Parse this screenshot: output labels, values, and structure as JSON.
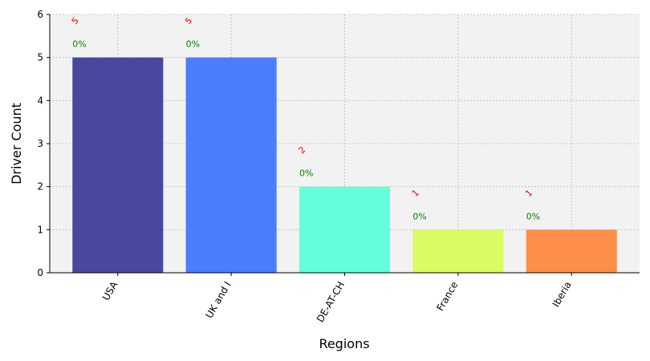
{
  "chart_data": {
    "type": "bar",
    "x_label": "Regions",
    "y_label": "Driver Count",
    "categories": [
      "USA",
      "UK and I",
      "DE-AT-CH",
      "France",
      "Iberia"
    ],
    "values": [
      5,
      5,
      2,
      1,
      1
    ],
    "colors": [
      "#48489f",
      "#4a7eff",
      "#64ffda",
      "#dafc62",
      "#fd8f4a"
    ],
    "percent_labels": [
      "0%",
      "0%",
      "0%",
      "0%",
      "0%"
    ],
    "ylim": [
      0,
      6
    ],
    "yticks": [
      0,
      1,
      2,
      3,
      4,
      5,
      6
    ],
    "grid": true
  }
}
